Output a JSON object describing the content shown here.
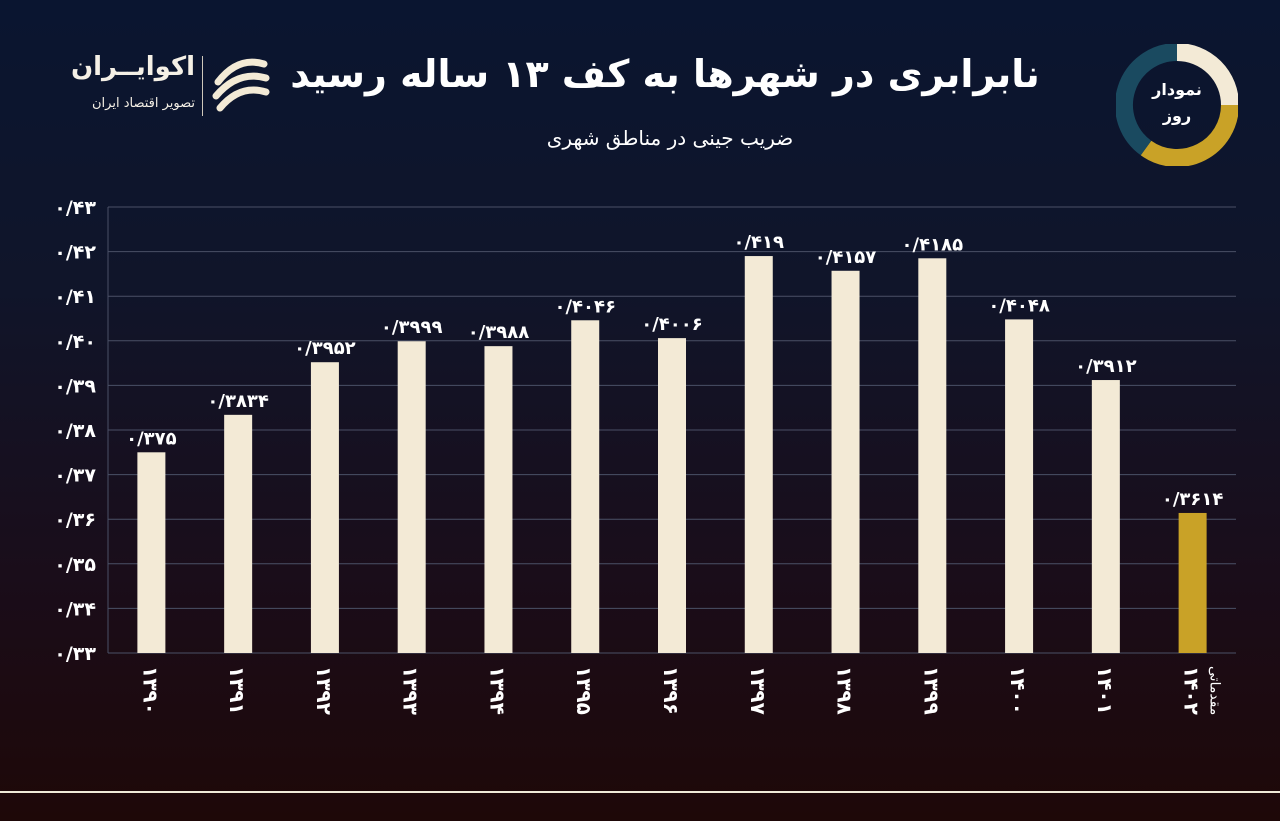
{
  "header": {
    "title": "نابرابری در شهرها به کف ۱۳ ساله رسید",
    "subtitle": "ضریب جینی در مناطق شهری"
  },
  "brand": {
    "name": "اکوایــران",
    "tagline": "تصویر اقتصاد ایران",
    "logo_icon": "ecoiran-wave-logo"
  },
  "badge": {
    "line1": "نمودار",
    "line2": "روز",
    "colors": [
      "#f3ead6",
      "#c9a227",
      "#1a4a60"
    ]
  },
  "colors": {
    "bar": "#f3ead6",
    "highlight_bar": "#c9a227",
    "grid": "#4a5066",
    "text": "#ffffff"
  },
  "chart_data": {
    "type": "bar",
    "title": "نابرابری در شهرها به کف ۱۳ ساله رسید",
    "subtitle": "ضریب جینی در مناطق شهری",
    "categories": [
      "۱۳۹۰",
      "۱۳۹۱",
      "۱۳۹۲",
      "۱۳۹۳",
      "۱۳۹۴",
      "۱۳۹۵",
      "۱۳۹۶",
      "۱۳۹۷",
      "۱۳۹۸",
      "۱۳۹۹",
      "۱۴۰۰",
      "۱۴۰۱",
      "۱۴۰۲"
    ],
    "category_notes": [
      "",
      "",
      "",
      "",
      "",
      "",
      "",
      "",
      "",
      "",
      "",
      "",
      "مقدماتی"
    ],
    "values": [
      0.375,
      0.3834,
      0.3952,
      0.3999,
      0.3988,
      0.4046,
      0.4006,
      0.419,
      0.4157,
      0.4185,
      0.4048,
      0.3912,
      0.3614
    ],
    "value_labels": [
      "۰/۳۷۵",
      "۰/۳۸۳۴",
      "۰/۳۹۵۲",
      "۰/۳۹۹۹",
      "۰/۳۹۸۸",
      "۰/۴۰۴۶",
      "۰/۴۰۰۶",
      "۰/۴۱۹",
      "۰/۴۱۵۷",
      "۰/۴۱۸۵",
      "۰/۴۰۴۸",
      "۰/۳۹۱۲",
      "۰/۳۶۱۴"
    ],
    "highlight_index": 12,
    "ylim": [
      0.33,
      0.43
    ],
    "yticks": [
      0.33,
      0.34,
      0.35,
      0.36,
      0.37,
      0.38,
      0.39,
      0.4,
      0.41,
      0.42,
      0.43
    ],
    "ytick_labels": [
      "۰/۳۳",
      "۰/۳۴",
      "۰/۳۵",
      "۰/۳۶",
      "۰/۳۷",
      "۰/۳۸",
      "۰/۳۹",
      "۰/۴۰",
      "۰/۴۱",
      "۰/۴۲",
      "۰/۴۳"
    ],
    "grid": true,
    "xlabel": "",
    "ylabel": ""
  }
}
